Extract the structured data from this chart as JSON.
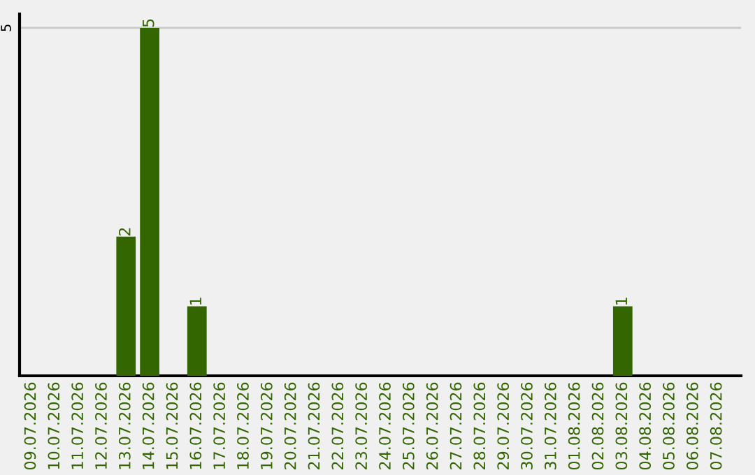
{
  "chart_data": {
    "type": "bar",
    "categories": [
      "09.07.2026",
      "10.07.2026",
      "11.07.2026",
      "12.07.2026",
      "13.07.2026",
      "14.07.2026",
      "15.07.2026",
      "16.07.2026",
      "17.07.2026",
      "18.07.2026",
      "19.07.2026",
      "20.07.2026",
      "21.07.2026",
      "22.07.2026",
      "23.07.2026",
      "24.07.2026",
      "25.07.2026",
      "26.07.2026",
      "27.07.2026",
      "28.07.2026",
      "29.07.2026",
      "30.07.2026",
      "31.07.2026",
      "01.08.2026",
      "02.08.2026",
      "03.08.2026",
      "04.08.2026",
      "05.08.2026",
      "06.08.2026",
      "07.08.2026"
    ],
    "values": [
      0,
      0,
      0,
      0,
      2,
      5,
      0,
      1,
      0,
      0,
      0,
      0,
      0,
      0,
      0,
      0,
      0,
      0,
      0,
      0,
      0,
      0,
      0,
      0,
      0,
      1,
      0,
      0,
      0,
      0
    ],
    "value_labels": [
      null,
      null,
      null,
      null,
      "2",
      "5",
      null,
      "1",
      null,
      null,
      null,
      null,
      null,
      null,
      null,
      null,
      null,
      null,
      null,
      null,
      null,
      null,
      null,
      null,
      null,
      "1",
      null,
      null,
      null,
      null
    ],
    "color": "#336600",
    "ylim": [
      0,
      5.2
    ],
    "yticks": [
      5
    ],
    "grid": "y",
    "legend": false
  }
}
